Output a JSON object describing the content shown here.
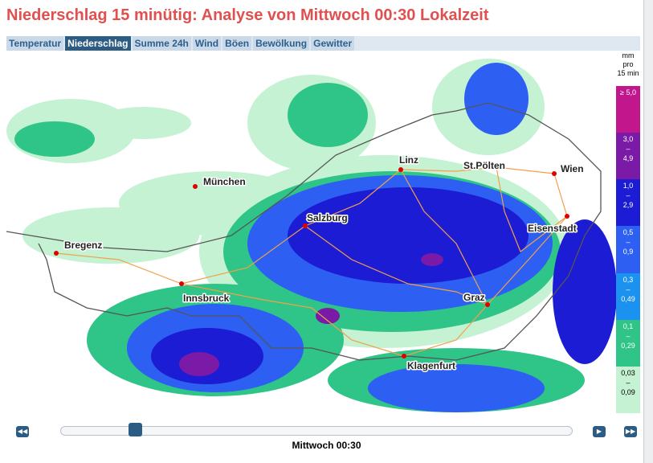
{
  "header": {
    "title": "Niederschlag 15 minütig: Analyse von Mittwoch 00:30 Lokalzeit"
  },
  "tabs": [
    {
      "label": "Temperatur",
      "active": false
    },
    {
      "label": "Niederschlag",
      "active": true
    },
    {
      "label": "Summe 24h",
      "active": false
    },
    {
      "label": "Wind",
      "active": false
    },
    {
      "label": "Böen",
      "active": false
    },
    {
      "label": "Bewölkung",
      "active": false
    },
    {
      "label": "Gewitter",
      "active": false
    }
  ],
  "legend": {
    "unit": [
      "mm",
      "pro",
      "15 min"
    ],
    "classes": [
      {
        "lines": [
          "≥ 5,0"
        ],
        "color": "#c2168d"
      },
      {
        "lines": [
          "3,0",
          "–",
          "4,9"
        ],
        "color": "#7a1aa6"
      },
      {
        "lines": [
          "1,0",
          "–",
          "2,9"
        ],
        "color": "#1c1cd4"
      },
      {
        "lines": [
          "0,5",
          "–",
          "0,9"
        ],
        "color": "#2d5ff2"
      },
      {
        "lines": [
          "0,3",
          "–",
          "0,49"
        ],
        "color": "#1b91f0"
      },
      {
        "lines": [
          "0,1",
          "–",
          "0,29"
        ],
        "color": "#2fc488"
      },
      {
        "lines": [
          "0,03",
          "–",
          "0,09"
        ],
        "color": "#c4f2d2"
      }
    ]
  },
  "cities": [
    {
      "name": "München"
    },
    {
      "name": "Linz"
    },
    {
      "name": "St.Pölten"
    },
    {
      "name": "Wien"
    },
    {
      "name": "Salzburg"
    },
    {
      "name": "Eisenstadt"
    },
    {
      "name": "Bregenz"
    },
    {
      "name": "Innsbruck"
    },
    {
      "name": "Graz"
    },
    {
      "name": "Klagenfurt"
    }
  ],
  "time_label": "Mittwoch 00:30"
}
